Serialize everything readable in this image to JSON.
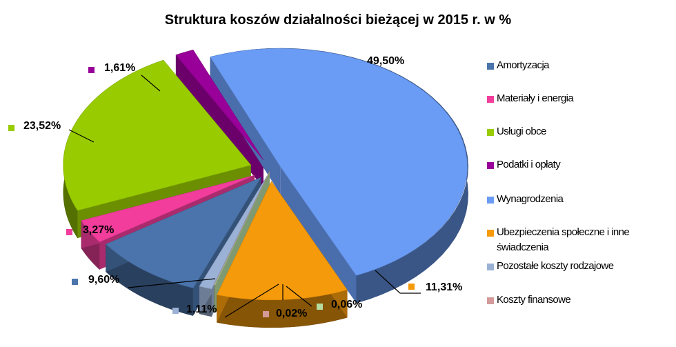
{
  "chart_data": {
    "type": "pie",
    "title": "Struktura koszów działalności bieżącej w 2015 r. w %",
    "legend_position": "right",
    "three_d": true,
    "exploded": true,
    "slices": [
      {
        "name": "Amortyzacja",
        "value": 9.6,
        "label": "9,60%",
        "color": "#4a74ab"
      },
      {
        "name": "Materiały i energia",
        "value": 3.27,
        "label": "3,27%",
        "color": "#f23d9c"
      },
      {
        "name": "Usługi obce",
        "value": 23.52,
        "label": "23,52%",
        "color": "#99cc00"
      },
      {
        "name": "Podatki i opłaty",
        "value": 1.61,
        "label": "1,61%",
        "color": "#990099"
      },
      {
        "name": "Wynagrodzenia",
        "value": 49.5,
        "label": "49,50%",
        "color": "#6a9cf5"
      },
      {
        "name": "Ubezpieczenia społeczne i inne świadczenia",
        "value": 11.31,
        "label": "11,31%",
        "color": "#f59a0a"
      },
      {
        "name": "Pozostałe koszty rodzajowe",
        "value": 1.11,
        "label": "1,11%",
        "color": "#9bb2d6"
      },
      {
        "name": "Koszty finansowe",
        "value": 0.02,
        "label": "0,02%",
        "color": "#d49a9a"
      },
      {
        "name": "",
        "value": 0.06,
        "label": "0,06%",
        "color": "#b6dca0"
      }
    ]
  }
}
